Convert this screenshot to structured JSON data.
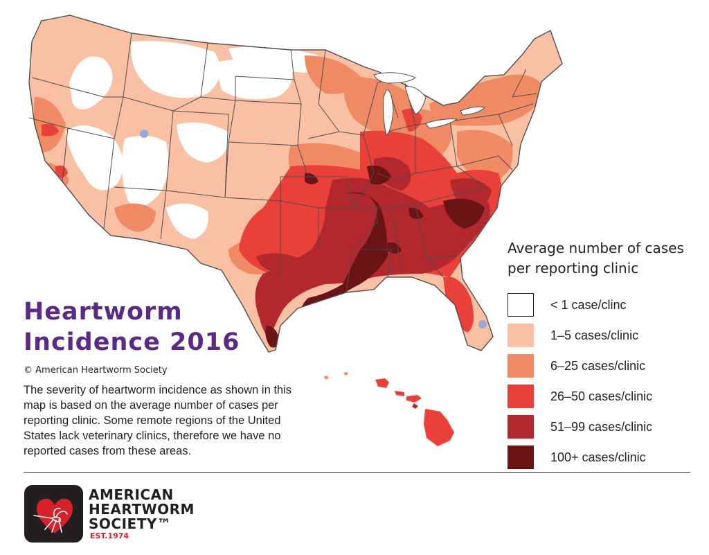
{
  "title_line1": "Heartworm",
  "title_line2": "Incidence 2016",
  "copyright": "© American Heartworm Society",
  "description": "The severity of heartworm incidence as shown in this map is based on the average number of cases per reporting clinic. Some remote regions of the United States lack veterinary clinics, therefore we have no reported cases from these areas.",
  "legend": {
    "title": "Average number of cases per reporting clinic",
    "items": [
      {
        "label": "< 1 case/clinc",
        "color": "#ffffff"
      },
      {
        "label": "1–5 cases/clinic",
        "color": "#f9c0a3"
      },
      {
        "label": "6–25 cases/clinic",
        "color": "#f08a64"
      },
      {
        "label": "26–50 cases/clinic",
        "color": "#e9403a"
      },
      {
        "label": "51–99 cases/clinic",
        "color": "#b2282e"
      },
      {
        "label": "100+ cases/clinic",
        "color": "#6b1416"
      }
    ]
  },
  "logo": {
    "line1": "AMERICAN",
    "line2": "HEARTWORM",
    "line3": "SOCIETY™",
    "est": "EST.1974"
  },
  "colors": {
    "title": "#5b2a86",
    "border": "#4d4d4d",
    "no_data_marker": "#9ea6d3"
  }
}
